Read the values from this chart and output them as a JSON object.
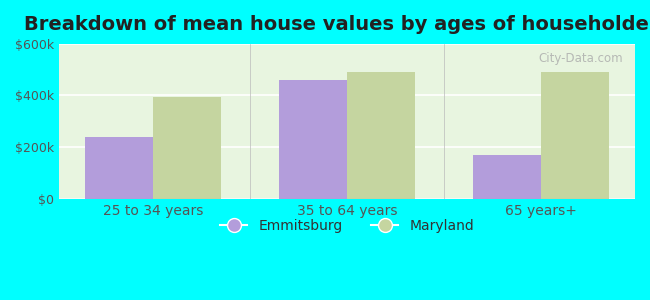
{
  "title": "Breakdown of mean house values by ages of householders",
  "categories": [
    "25 to 34 years",
    "35 to 64 years",
    "65 years+"
  ],
  "emmitsburg_values": [
    240000,
    460000,
    170000
  ],
  "maryland_values": [
    395000,
    490000,
    490000
  ],
  "emmitsburg_color": "#b39ddb",
  "maryland_color": "#c5d5a0",
  "ylim": [
    0,
    600000
  ],
  "yticks": [
    0,
    200000,
    400000,
    600000
  ],
  "ytick_labels": [
    "$0",
    "$200k",
    "$400k",
    "$600k"
  ],
  "legend_labels": [
    "Emmitsburg",
    "Maryland"
  ],
  "background_color": "#00ffff",
  "bar_width": 0.35,
  "title_fontsize": 14,
  "axis_label_fontsize": 10,
  "tick_fontsize": 9,
  "legend_fontsize": 10,
  "watermark": "City-Data.com"
}
